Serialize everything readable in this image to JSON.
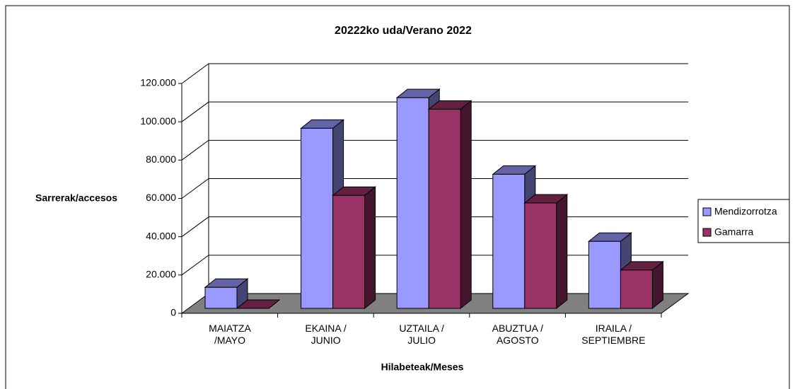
{
  "chart_data": {
    "type": "bar3d",
    "title": "20222ko uda/Verano 2022",
    "ylabel": "Sarrerak/accesos",
    "xlabel": "Hilabeteak/Meses",
    "categories": [
      "MAIATZA\n/MAYO",
      "EKAINA /\nJUNIO",
      "UZTAILA /\nJULIO",
      "ABUZTUA /\nAGOSTO",
      "IRAILA /\nSEPTIEMBRE"
    ],
    "series": [
      {
        "name": "Mendizorrotza",
        "color": "#9999ff",
        "values": [
          11000,
          94000,
          110000,
          70000,
          35000
        ]
      },
      {
        "name": "Gamarra",
        "color": "#993366",
        "values": [
          0,
          59000,
          104000,
          55000,
          20000
        ]
      }
    ],
    "ylim": [
      0,
      120000
    ],
    "yticks": [
      0,
      {
        "value": 20000,
        "label": "20.000"
      },
      {
        "value": 40000,
        "label": "40.000"
      },
      {
        "value": 60000,
        "label": "60.000"
      },
      {
        "value": 80000,
        "label": "80.000"
      },
      {
        "value": 100000,
        "label": "100.000"
      },
      {
        "value": 120000,
        "label": "120.000"
      }
    ],
    "grid": true,
    "legend": "right"
  }
}
